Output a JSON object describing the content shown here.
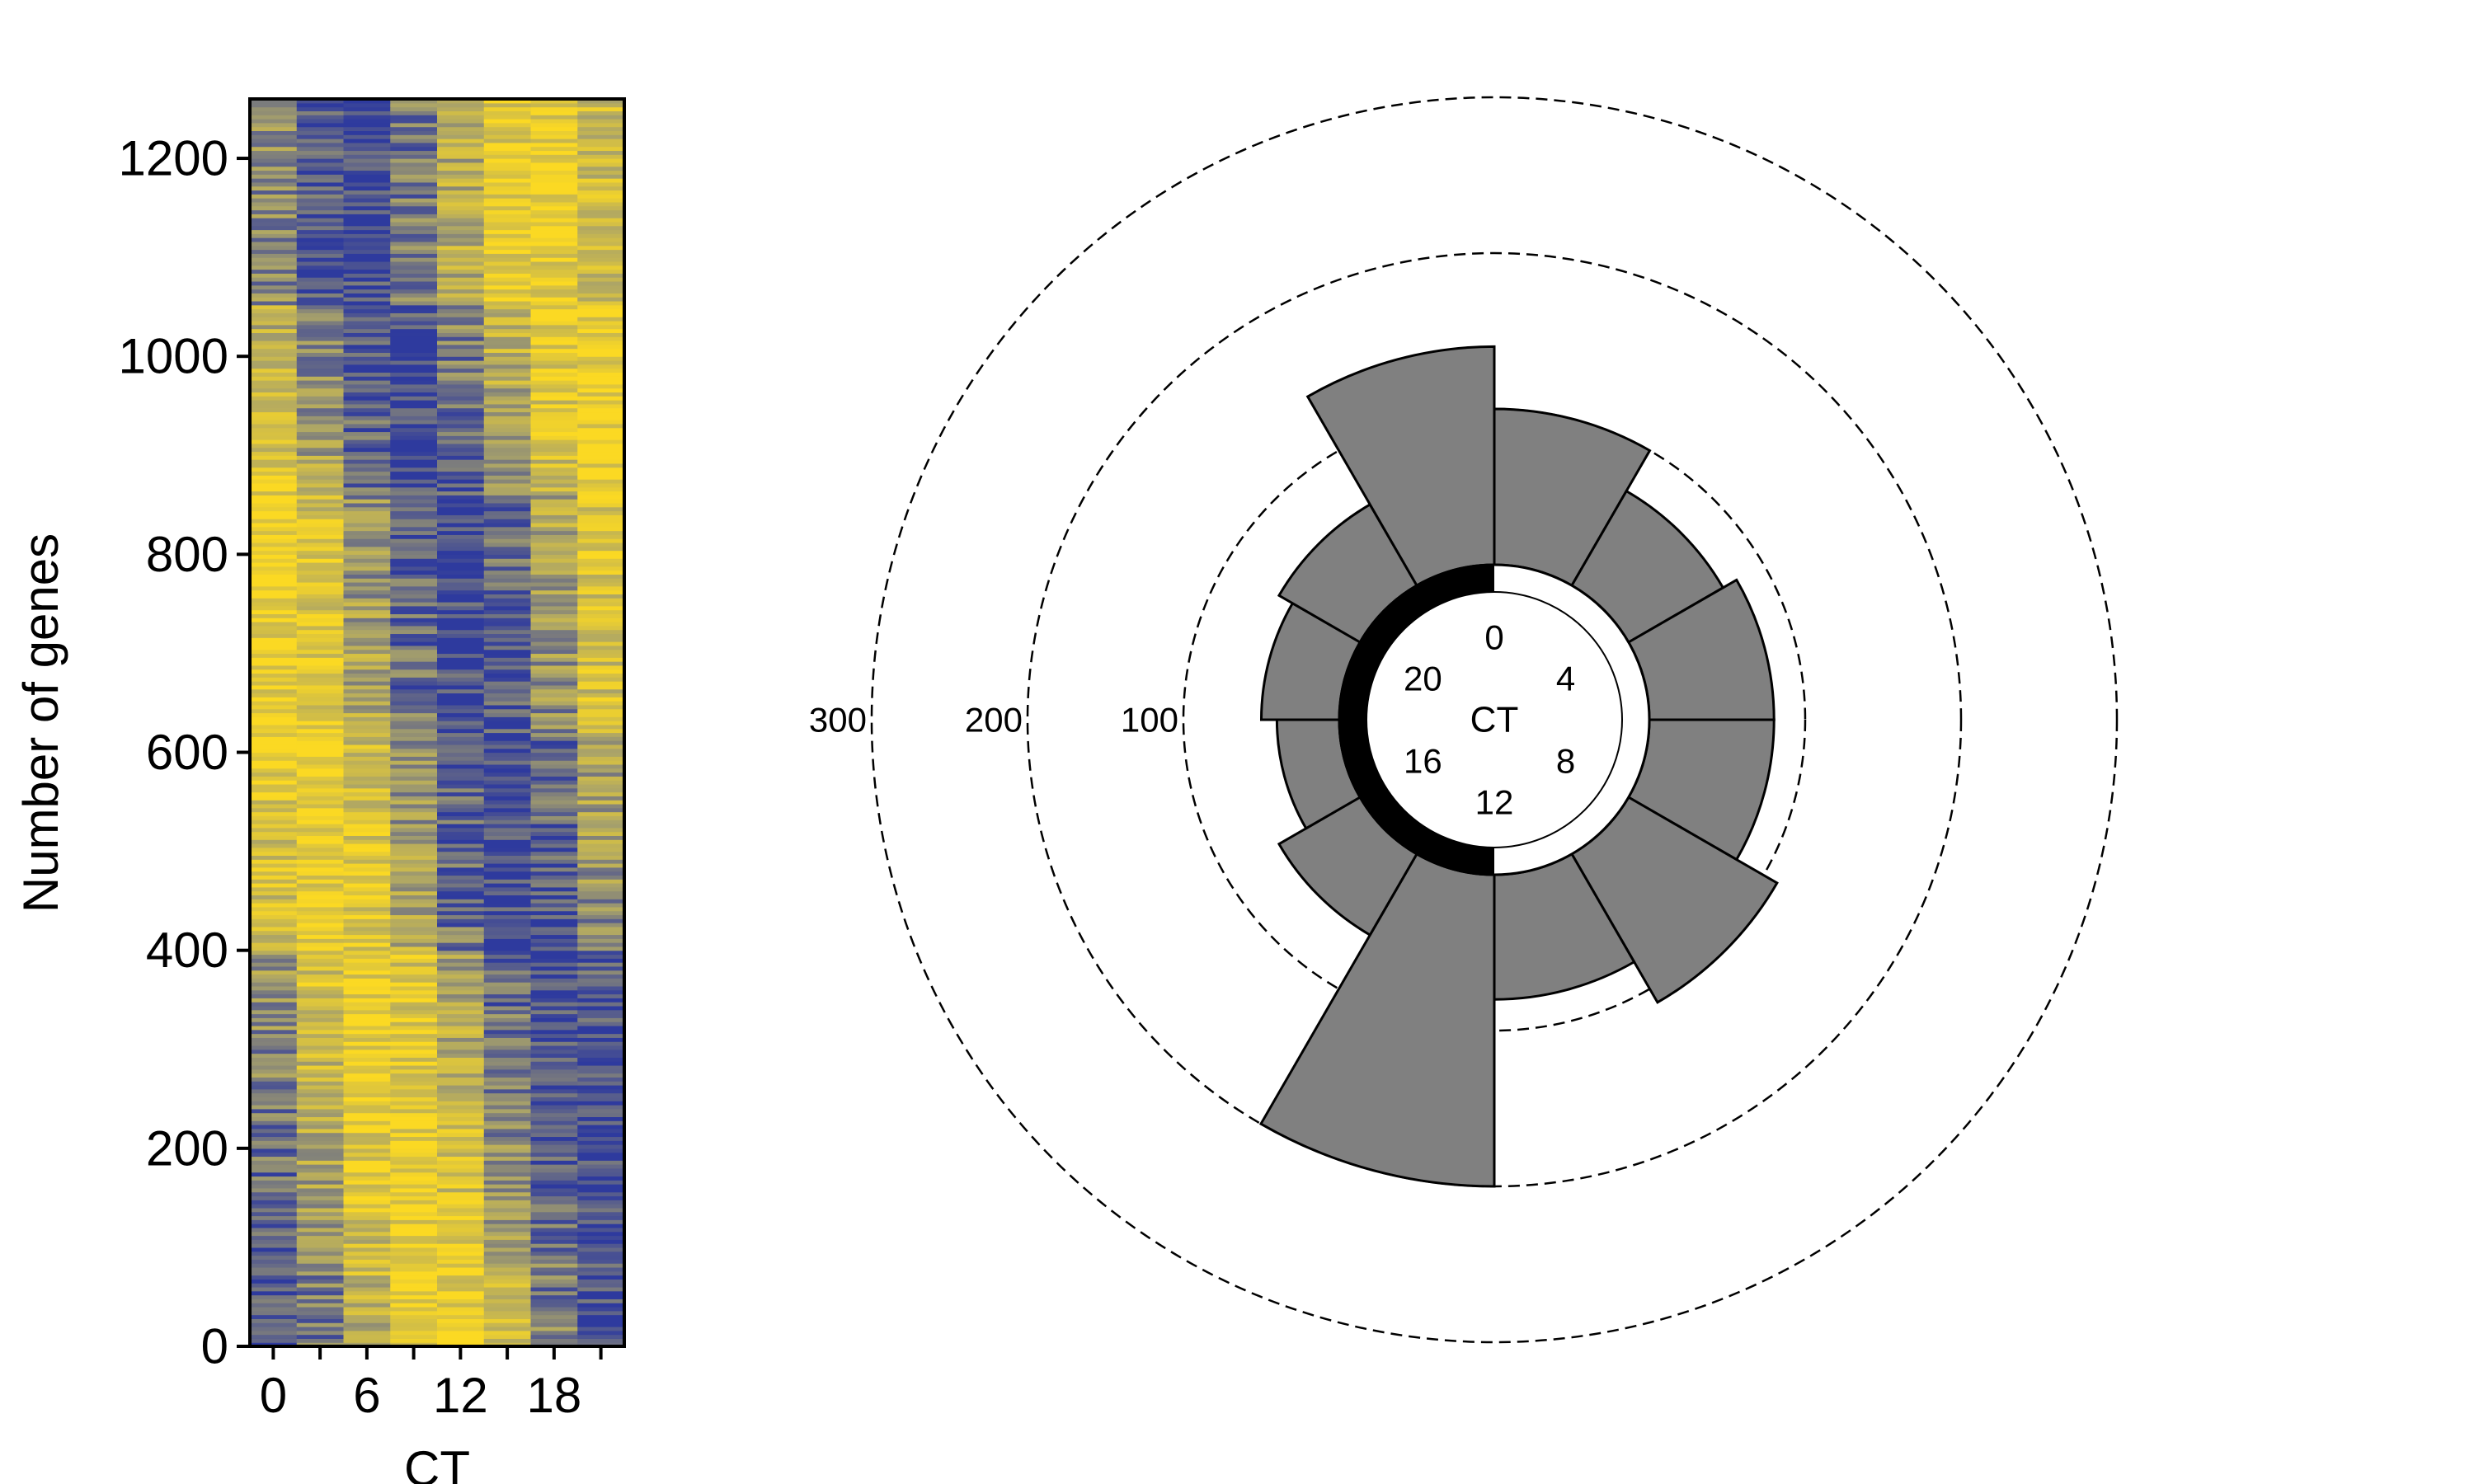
{
  "colors": {
    "low": "#2e3a9e",
    "high": "#fbd923",
    "mid": "#a8a26a",
    "bar_fill": "#808080",
    "bar_stroke": "#000000",
    "night_band": "#000000"
  },
  "chart_data": [
    {
      "type": "heatmap",
      "xlabel": "CT",
      "ylabel": "Number of genes",
      "ylim": [
        0,
        1260
      ],
      "yticks": [
        "0",
        "200",
        "400",
        "600",
        "800",
        "1000",
        "1200"
      ],
      "ytick_values": [
        0,
        200,
        400,
        600,
        800,
        1000,
        1200
      ],
      "xticks": [
        "0",
        "6",
        "12",
        "18"
      ],
      "xtick_values": [
        0,
        6,
        12,
        18
      ],
      "columns_ct": [
        0,
        3,
        6,
        9,
        12,
        15,
        18,
        21
      ],
      "n_genes": 1260,
      "peak_phase_profile": [
        {
          "genes": [
            0,
            120
          ],
          "peak_ct": 11
        },
        {
          "genes": [
            120,
            400
          ],
          "peak_ct": 9
        },
        {
          "genes": [
            400,
            620
          ],
          "peak_ct": 4
        },
        {
          "genes": [
            620,
            860
          ],
          "peak_ct": 1
        },
        {
          "genes": [
            860,
            1050
          ],
          "peak_ct": 22
        },
        {
          "genes": [
            1050,
            1260
          ],
          "peak_ct": 17
        }
      ],
      "grid": false
    },
    {
      "type": "bar",
      "subtype": "polar",
      "center_label": "CT",
      "categories": [
        "0",
        "2",
        "4",
        "6",
        "8",
        "10",
        "12",
        "14",
        "16",
        "18",
        "20",
        "22"
      ],
      "clock_labels": [
        "0",
        "4",
        "8",
        "12",
        "16",
        "20"
      ],
      "ring_labels": [
        "100",
        "200",
        "300"
      ],
      "ring_values": [
        100,
        200,
        300
      ],
      "rmax": 300,
      "values": [
        100,
        70,
        80,
        80,
        110,
        80,
        200,
        60,
        40,
        50,
        60,
        140
      ],
      "night_band": [
        12,
        24
      ],
      "grid": true
    }
  ]
}
